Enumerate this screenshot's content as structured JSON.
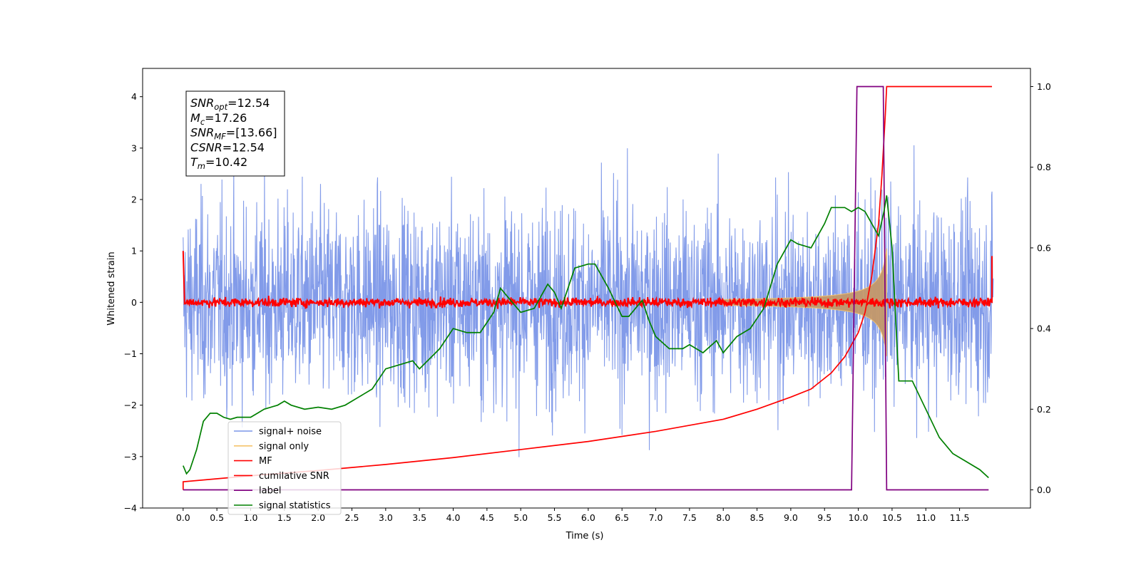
{
  "chart_data": {
    "type": "line",
    "xlabel": "Time (s)",
    "ylabel": "Whitened strain",
    "xlim": [
      -0.6,
      12.55
    ],
    "ylim": [
      -4.0,
      4.55
    ],
    "y2lim": [
      -0.045,
      1.045
    ],
    "x_ticks": [
      0.0,
      0.5,
      1.0,
      1.5,
      2.0,
      2.5,
      3.0,
      3.5,
      4.0,
      4.5,
      5.0,
      5.5,
      6.0,
      6.5,
      7.0,
      7.5,
      8.0,
      8.5,
      9.0,
      9.5,
      10.0,
      10.5,
      11.0,
      11.5
    ],
    "x_tick_labels": [
      "0.0",
      "0.5",
      "1.0",
      "1.5",
      "2.0",
      "2.5",
      "3.0",
      "3.5",
      "4.0",
      "4.5",
      "5.0",
      "5.5",
      "6.0",
      "6.5",
      "7.0",
      "7.5",
      "8.0",
      "8.5",
      "9.0",
      "9.5",
      "10.0",
      "10.5",
      "11.0",
      "11.5"
    ],
    "y_ticks": [
      -4,
      -3,
      -2,
      -1,
      0,
      1,
      2,
      3,
      4
    ],
    "y_tick_labels": [
      "−4",
      "−3",
      "−2",
      "−1",
      "0",
      "1",
      "2",
      "3",
      "4"
    ],
    "y2_ticks": [
      0.0,
      0.2,
      0.4,
      0.6,
      0.8,
      1.0
    ],
    "y2_tick_labels": [
      "0.0",
      "0.2",
      "0.4",
      "0.6",
      "0.8",
      "1.0"
    ],
    "duration": 12.0,
    "noise_amplitude": 0.95,
    "signal_peak_time": 10.42,
    "annotation": [
      {
        "base": "SNR",
        "sub": "opt",
        "value": "=12.54"
      },
      {
        "base": "M",
        "sub": "c",
        "value": "=17.26"
      },
      {
        "base": "SNR",
        "sub": "MF",
        "value": "=[13.66]"
      },
      {
        "base": "CSNR",
        "sub": "",
        "value": "=12.54"
      },
      {
        "base": "T",
        "sub": "m",
        "value": "=10.42"
      }
    ],
    "legend_position": "lower-left",
    "series": [
      {
        "name": "signal+ noise",
        "color": "#7b96e8",
        "axis": "left",
        "kind": "noise"
      },
      {
        "name": "signal only",
        "color": "#f5c36b",
        "axis": "left",
        "kind": "chirp"
      },
      {
        "name": "MF",
        "color": "#ff0000",
        "axis": "left",
        "kind": "mf"
      },
      {
        "name": "cumilative SNR",
        "color": "#ff0000",
        "axis": "right",
        "points": [
          [
            0.0,
            0.0
          ],
          [
            0.0,
            0.02
          ],
          [
            1.0,
            0.035
          ],
          [
            2.0,
            0.048
          ],
          [
            3.0,
            0.063
          ],
          [
            4.0,
            0.08
          ],
          [
            5.0,
            0.1
          ],
          [
            6.0,
            0.12
          ],
          [
            7.0,
            0.145
          ],
          [
            7.5,
            0.16
          ],
          [
            8.0,
            0.175
          ],
          [
            8.5,
            0.2
          ],
          [
            9.0,
            0.23
          ],
          [
            9.3,
            0.25
          ],
          [
            9.6,
            0.29
          ],
          [
            9.8,
            0.33
          ],
          [
            10.0,
            0.39
          ],
          [
            10.1,
            0.44
          ],
          [
            10.2,
            0.53
          ],
          [
            10.3,
            0.66
          ],
          [
            10.35,
            0.78
          ],
          [
            10.4,
            0.93
          ],
          [
            10.42,
            1.0
          ],
          [
            11.5,
            1.0
          ],
          [
            11.98,
            1.0
          ]
        ]
      },
      {
        "name": "label",
        "color": "#800080",
        "axis": "right",
        "points": [
          [
            0.0,
            0.0
          ],
          [
            9.9,
            0.0
          ],
          [
            9.98,
            1.0
          ],
          [
            10.37,
            1.0
          ],
          [
            10.42,
            0.0
          ],
          [
            11.93,
            0.0
          ]
        ]
      },
      {
        "name": "signal statistics",
        "color": "#008000",
        "axis": "right",
        "points": [
          [
            0.0,
            0.06
          ],
          [
            0.05,
            0.04
          ],
          [
            0.1,
            0.05
          ],
          [
            0.2,
            0.1
          ],
          [
            0.3,
            0.17
          ],
          [
            0.4,
            0.19
          ],
          [
            0.5,
            0.19
          ],
          [
            0.6,
            0.18
          ],
          [
            0.7,
            0.175
          ],
          [
            0.8,
            0.18
          ],
          [
            1.0,
            0.18
          ],
          [
            1.1,
            0.19
          ],
          [
            1.2,
            0.2
          ],
          [
            1.4,
            0.21
          ],
          [
            1.5,
            0.22
          ],
          [
            1.6,
            0.21
          ],
          [
            1.8,
            0.2
          ],
          [
            2.0,
            0.205
          ],
          [
            2.2,
            0.2
          ],
          [
            2.4,
            0.21
          ],
          [
            2.6,
            0.23
          ],
          [
            2.8,
            0.25
          ],
          [
            3.0,
            0.3
          ],
          [
            3.2,
            0.31
          ],
          [
            3.4,
            0.32
          ],
          [
            3.5,
            0.3
          ],
          [
            3.8,
            0.35
          ],
          [
            4.0,
            0.4
          ],
          [
            4.2,
            0.39
          ],
          [
            4.4,
            0.39
          ],
          [
            4.6,
            0.44
          ],
          [
            4.7,
            0.5
          ],
          [
            4.8,
            0.48
          ],
          [
            5.0,
            0.44
          ],
          [
            5.2,
            0.45
          ],
          [
            5.4,
            0.51
          ],
          [
            5.5,
            0.49
          ],
          [
            5.6,
            0.45
          ],
          [
            5.8,
            0.55
          ],
          [
            6.0,
            0.56
          ],
          [
            6.1,
            0.56
          ],
          [
            6.3,
            0.5
          ],
          [
            6.5,
            0.43
          ],
          [
            6.6,
            0.43
          ],
          [
            6.8,
            0.47
          ],
          [
            6.9,
            0.42
          ],
          [
            7.0,
            0.38
          ],
          [
            7.2,
            0.35
          ],
          [
            7.4,
            0.35
          ],
          [
            7.5,
            0.36
          ],
          [
            7.7,
            0.34
          ],
          [
            7.9,
            0.37
          ],
          [
            8.0,
            0.34
          ],
          [
            8.2,
            0.38
          ],
          [
            8.4,
            0.4
          ],
          [
            8.6,
            0.45
          ],
          [
            8.8,
            0.56
          ],
          [
            9.0,
            0.62
          ],
          [
            9.1,
            0.61
          ],
          [
            9.3,
            0.6
          ],
          [
            9.5,
            0.66
          ],
          [
            9.6,
            0.7
          ],
          [
            9.8,
            0.7
          ],
          [
            9.9,
            0.69
          ],
          [
            10.0,
            0.7
          ],
          [
            10.1,
            0.69
          ],
          [
            10.2,
            0.66
          ],
          [
            10.3,
            0.63
          ],
          [
            10.38,
            0.69
          ],
          [
            10.42,
            0.73
          ],
          [
            10.5,
            0.6
          ],
          [
            10.6,
            0.27
          ],
          [
            10.8,
            0.27
          ],
          [
            11.0,
            0.2
          ],
          [
            11.2,
            0.13
          ],
          [
            11.4,
            0.09
          ],
          [
            11.6,
            0.07
          ],
          [
            11.8,
            0.05
          ],
          [
            11.93,
            0.03
          ]
        ]
      }
    ]
  }
}
